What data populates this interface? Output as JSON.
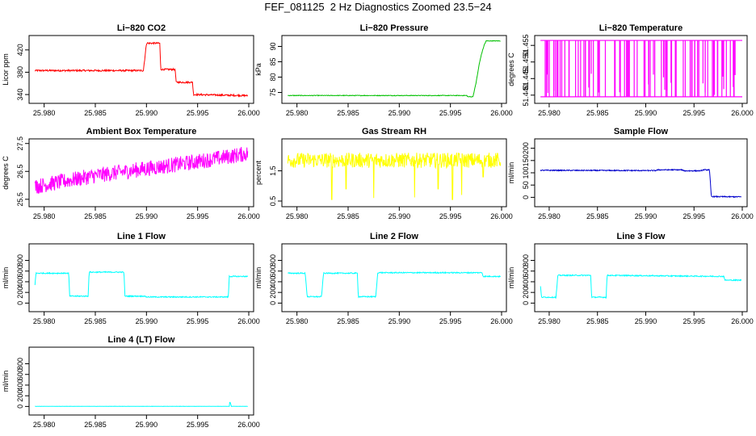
{
  "figure_title": "FEF_081125  2 Hz Diagnostics Zoomed 23.5−24",
  "chart_data": [
    {
      "type": "line",
      "title": "Li−820 CO2",
      "ylabel": "Licor ppm",
      "color": "#ff0000",
      "xlim": [
        25.979,
        26.0
      ],
      "ylim": [
        330,
        440
      ],
      "xticks": [
        25.98,
        25.985,
        25.99,
        25.995,
        26.0
      ],
      "xtick_labels": [
        "25.980",
        "25.985",
        "25.990",
        "25.995",
        "26.000"
      ],
      "yticks": [
        340,
        380,
        420
      ],
      "ytick_labels": [
        "340",
        "380",
        "420"
      ],
      "noise": 1.5,
      "segments": [
        [
          25.979,
          383
        ],
        [
          25.9897,
          383
        ],
        [
          25.99,
          432
        ],
        [
          25.9913,
          432
        ],
        [
          25.9914,
          385
        ],
        [
          25.9928,
          385
        ],
        [
          25.9929,
          362
        ],
        [
          25.9945,
          362
        ],
        [
          25.9946,
          340
        ],
        [
          26.0,
          338
        ]
      ]
    },
    {
      "type": "line",
      "title": "Li−820 Pressure",
      "ylabel": "kPa",
      "color": "#00c000",
      "xlim": [
        25.979,
        26.0
      ],
      "ylim": [
        72.5,
        92.5
      ],
      "xticks": [
        25.98,
        25.985,
        25.99,
        25.995,
        26.0
      ],
      "xtick_labels": [
        "25.980",
        "25.985",
        "25.990",
        "25.995",
        "26.000"
      ],
      "yticks": [
        75,
        80,
        85,
        90
      ],
      "ytick_labels": [
        "75",
        "80",
        "85",
        "90"
      ],
      "noise": 0.1,
      "segments": [
        [
          25.979,
          74
        ],
        [
          25.9966,
          74
        ],
        [
          25.9967,
          73.6
        ],
        [
          25.9972,
          73.6
        ],
        [
          25.9975,
          78
        ],
        [
          25.9978,
          84
        ],
        [
          25.998,
          87
        ],
        [
          25.9983,
          90.5
        ],
        [
          25.9985,
          91.8
        ],
        [
          26.0,
          91.8
        ]
      ]
    },
    {
      "type": "spikes",
      "title": "Li−820 Temperature",
      "ylabel": "degrees C",
      "color": "#ff00ff",
      "xlim": [
        25.979,
        26.0
      ],
      "ylim": [
        51.4385,
        51.457
      ],
      "xticks": [
        25.98,
        25.985,
        25.99,
        25.995,
        26.0
      ],
      "xtick_labels": [
        "25.980",
        "25.985",
        "25.990",
        "25.995",
        "26.000"
      ],
      "yticks": [
        51.44,
        51.445,
        51.45,
        51.455
      ],
      "ytick_labels": [
        "51.440",
        "51.445",
        "51.450",
        "51.455"
      ],
      "base": 51.4395,
      "top": 51.4565,
      "count": 90
    },
    {
      "type": "line",
      "title": "Ambient Box Temperature",
      "ylabel": "degrees C",
      "color": "#ff00ff",
      "xlim": [
        25.979,
        26.0
      ],
      "ylim": [
        25.35,
        27.55
      ],
      "xticks": [
        25.98,
        25.985,
        25.99,
        25.995,
        26.0
      ],
      "xtick_labels": [
        "25.980",
        "25.985",
        "25.990",
        "25.995",
        "26.000"
      ],
      "yticks": [
        25.5,
        26.5,
        27.5
      ],
      "ytick_labels": [
        "25.5",
        "26.5",
        "27.5"
      ],
      "noise": 0.28,
      "segments": [
        [
          25.979,
          25.95
        ],
        [
          25.985,
          26.35
        ],
        [
          25.99,
          26.6
        ],
        [
          25.995,
          26.85
        ],
        [
          26.0,
          27.15
        ]
      ]
    },
    {
      "type": "line",
      "title": "Gas Stream RH",
      "ylabel": "percent",
      "color": "#ffff00",
      "xlim": [
        25.979,
        26.0
      ],
      "ylim": [
        0.42,
        2.45
      ],
      "xticks": [
        25.98,
        25.985,
        25.99,
        25.995,
        26.0
      ],
      "xtick_labels": [
        "25.980",
        "25.985",
        "25.990",
        "25.995",
        "26.000"
      ],
      "yticks": [
        0.5,
        1.5
      ],
      "ytick_labels": [
        "0.5",
        "1.5"
      ],
      "noise": 0.25,
      "segments": [
        [
          25.979,
          1.85
        ],
        [
          26.0,
          1.85
        ]
      ],
      "dips": [
        [
          25.9834,
          0.55
        ],
        [
          25.9848,
          0.9
        ],
        [
          25.9875,
          0.6
        ],
        [
          25.9915,
          0.62
        ],
        [
          25.9938,
          0.9
        ],
        [
          25.9952,
          0.55
        ],
        [
          25.9961,
          0.7
        ],
        [
          25.9982,
          1.3
        ]
      ]
    },
    {
      "type": "line",
      "title": "Sample Flow",
      "ylabel": "ml/min",
      "color": "#0000cc",
      "xlim": [
        25.979,
        26.0
      ],
      "ylim": [
        -25,
        225
      ],
      "xticks": [
        25.98,
        25.985,
        25.99,
        25.995,
        26.0
      ],
      "xtick_labels": [
        "25.980",
        "25.985",
        "25.990",
        "25.995",
        "26.000"
      ],
      "yticks": [
        0,
        50,
        100,
        150,
        200
      ],
      "ytick_labels": [
        "0",
        "50",
        "100",
        "150",
        "200"
      ],
      "noise": 2,
      "segments": [
        [
          25.979,
          110
        ],
        [
          25.991,
          109
        ],
        [
          25.9913,
          112
        ],
        [
          25.9937,
          112
        ],
        [
          25.994,
          108
        ],
        [
          25.9957,
          108
        ],
        [
          25.996,
          112
        ],
        [
          25.9966,
          112
        ],
        [
          25.9968,
          3
        ],
        [
          26.0,
          2
        ]
      ]
    },
    {
      "type": "line",
      "title": "Line 1 Flow",
      "ylabel": "ml/min",
      "color": "#00ffff",
      "xlim": [
        25.979,
        26.0
      ],
      "ylim": [
        -100,
        1050
      ],
      "xticks": [
        25.98,
        25.985,
        25.99,
        25.995,
        26.0
      ],
      "xtick_labels": [
        "25.980",
        "25.985",
        "25.990",
        "25.995",
        "26.000"
      ],
      "yticks": [
        0,
        200,
        400,
        600,
        800
      ],
      "ytick_labels": [
        "0",
        "200",
        "400",
        "600",
        "800"
      ],
      "noise": 10,
      "segments": [
        [
          25.979,
          130
        ],
        [
          25.9792,
          560
        ],
        [
          25.9824,
          560
        ],
        [
          25.9825,
          130
        ],
        [
          25.9843,
          130
        ],
        [
          25.9844,
          580
        ],
        [
          25.9878,
          580
        ],
        [
          25.9879,
          130
        ],
        [
          25.9898,
          130
        ],
        [
          25.99,
          115
        ],
        [
          25.998,
          115
        ],
        [
          25.9981,
          500
        ],
        [
          26.0,
          500
        ]
      ]
    },
    {
      "type": "line",
      "title": "Line 2 Flow",
      "ylabel": "ml/min",
      "color": "#00ffff",
      "xlim": [
        25.979,
        26.0
      ],
      "ylim": [
        -100,
        1050
      ],
      "xticks": [
        25.98,
        25.985,
        25.99,
        25.995,
        26.0
      ],
      "xtick_labels": [
        "25.980",
        "25.985",
        "25.990",
        "25.995",
        "26.000"
      ],
      "yticks": [
        0,
        200,
        400,
        600,
        800
      ],
      "ytick_labels": [
        "0",
        "200",
        "400",
        "600",
        "800"
      ],
      "noise": 10,
      "segments": [
        [
          25.979,
          560
        ],
        [
          25.9808,
          560
        ],
        [
          25.981,
          120
        ],
        [
          25.9824,
          120
        ],
        [
          25.9826,
          560
        ],
        [
          25.9859,
          560
        ],
        [
          25.986,
          120
        ],
        [
          25.9877,
          120
        ],
        [
          25.9879,
          570
        ],
        [
          25.9981,
          570
        ],
        [
          25.9982,
          500
        ],
        [
          26.0,
          500
        ]
      ]
    },
    {
      "type": "line",
      "title": "Line 3 Flow",
      "ylabel": "ml/min",
      "color": "#00ffff",
      "xlim": [
        25.979,
        26.0
      ],
      "ylim": [
        -100,
        1050
      ],
      "xticks": [
        25.98,
        25.985,
        25.99,
        25.995,
        26.0
      ],
      "xtick_labels": [
        "25.980",
        "25.985",
        "25.990",
        "25.995",
        "26.000"
      ],
      "yticks": [
        0,
        200,
        400,
        600,
        800
      ],
      "ytick_labels": [
        "0",
        "200",
        "400",
        "600",
        "800"
      ],
      "noise": 10,
      "segments": [
        [
          25.979,
          520
        ],
        [
          25.9792,
          110
        ],
        [
          25.9807,
          110
        ],
        [
          25.9809,
          520
        ],
        [
          25.9843,
          520
        ],
        [
          25.9844,
          110
        ],
        [
          25.9859,
          110
        ],
        [
          25.986,
          520
        ],
        [
          25.9981,
          500
        ],
        [
          25.9982,
          430
        ],
        [
          26.0,
          430
        ]
      ]
    },
    {
      "type": "line",
      "title": "Line 4 (LT) Flow",
      "ylabel": "ml/min",
      "color": "#00ffff",
      "xlim": [
        25.979,
        26.0
      ],
      "ylim": [
        -100,
        1050
      ],
      "xticks": [
        25.98,
        25.985,
        25.99,
        25.995,
        26.0
      ],
      "xtick_labels": [
        "25.980",
        "25.985",
        "25.990",
        "25.995",
        "26.000"
      ],
      "yticks": [
        0,
        200,
        400,
        600,
        800
      ],
      "ytick_labels": [
        "0",
        "200",
        "400",
        "600",
        "800"
      ],
      "noise": 2,
      "segments": [
        [
          25.979,
          2
        ],
        [
          25.9981,
          2
        ],
        [
          25.99815,
          95
        ],
        [
          25.9983,
          2
        ],
        [
          26.0,
          2
        ]
      ]
    }
  ]
}
